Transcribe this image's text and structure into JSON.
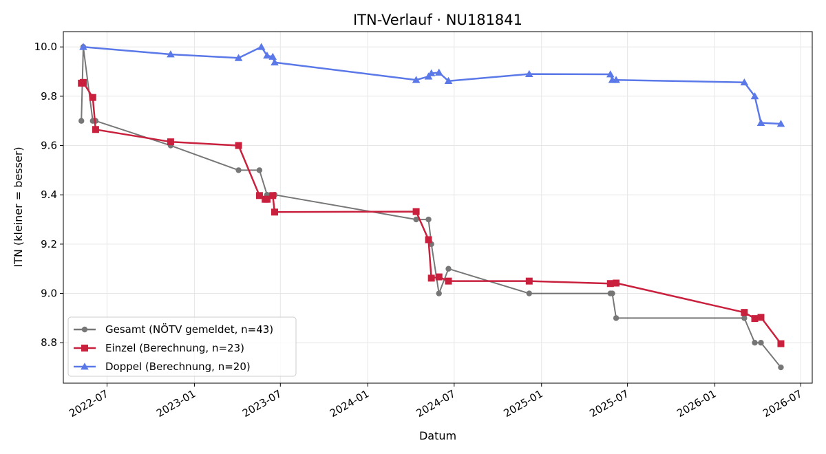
{
  "chart_data": {
    "type": "line",
    "title": "ITN-Verlauf · NU181841",
    "xlabel": "Datum",
    "ylabel": "ITN  (kleiner = besser)",
    "x_type": "date",
    "xlim": [
      "2022-03-31",
      "2026-07-25"
    ],
    "ylim": [
      8.636,
      10.062
    ],
    "x_ticks": [
      "2022-07-01",
      "2023-01-01",
      "2023-07-01",
      "2024-01-01",
      "2024-07-01",
      "2025-01-01",
      "2025-07-01",
      "2026-01-01",
      "2026-07-01"
    ],
    "x_tick_labels": [
      "2022-07",
      "2023-01",
      "2023-07",
      "2024-01",
      "2024-07",
      "2025-01",
      "2025-07",
      "2026-01",
      "2026-07"
    ],
    "y_ticks": [
      8.8,
      9.0,
      9.2,
      9.4,
      9.6,
      9.8,
      10.0
    ],
    "y_tick_labels": [
      "8.8",
      "9.0",
      "9.2",
      "9.4",
      "9.6",
      "9.8",
      "10.0"
    ],
    "grid": true,
    "legend_position": "lower-left",
    "series": [
      {
        "name": "Gesamt (NÖTV gemeldet, n=43)",
        "color": "#4a4a4a",
        "marker": "circle",
        "points": [
          [
            "2022-05-08",
            9.7
          ],
          [
            "2022-05-12",
            10.0
          ],
          [
            "2022-06-01",
            9.7
          ],
          [
            "2022-06-07",
            9.7
          ],
          [
            "2022-11-12",
            9.6
          ],
          [
            "2023-04-04",
            9.5
          ],
          [
            "2023-05-18",
            9.5
          ],
          [
            "2023-06-03",
            9.4
          ],
          [
            "2023-06-19",
            9.4
          ],
          [
            "2024-04-12",
            9.3
          ],
          [
            "2024-05-08",
            9.3
          ],
          [
            "2024-05-14",
            9.2
          ],
          [
            "2024-05-30",
            9.0
          ],
          [
            "2024-06-19",
            9.1
          ],
          [
            "2024-12-06",
            9.0
          ],
          [
            "2025-05-26",
            9.0
          ],
          [
            "2025-05-30",
            9.0
          ],
          [
            "2025-06-07",
            8.9
          ],
          [
            "2026-03-04",
            8.9
          ],
          [
            "2026-03-26",
            8.8
          ],
          [
            "2026-04-08",
            8.8
          ],
          [
            "2026-05-20",
            8.7
          ]
        ]
      },
      {
        "name": "Einzel (Berechnung, n=23)",
        "color": "#c8203d",
        "marker": "square",
        "points": [
          [
            "2022-05-08",
            9.853
          ],
          [
            "2022-05-12",
            9.856
          ],
          [
            "2022-06-01",
            9.795
          ],
          [
            "2022-06-07",
            9.665
          ],
          [
            "2022-11-12",
            9.615
          ],
          [
            "2023-04-04",
            9.6
          ],
          [
            "2023-05-18",
            9.397
          ],
          [
            "2023-05-30",
            9.382
          ],
          [
            "2023-06-03",
            9.382
          ],
          [
            "2023-06-15",
            9.397
          ],
          [
            "2023-06-19",
            9.33
          ],
          [
            "2024-04-12",
            9.332
          ],
          [
            "2024-05-08",
            9.218
          ],
          [
            "2024-05-14",
            9.062
          ],
          [
            "2024-05-30",
            9.067
          ],
          [
            "2024-06-19",
            9.05
          ],
          [
            "2024-12-06",
            9.05
          ],
          [
            "2025-05-26",
            9.04
          ],
          [
            "2025-06-07",
            9.042
          ],
          [
            "2026-03-04",
            8.923
          ],
          [
            "2026-03-26",
            8.898
          ],
          [
            "2026-04-08",
            8.903
          ],
          [
            "2026-05-20",
            8.796
          ]
        ]
      },
      {
        "name": "Doppel (Berechnung, n=20)",
        "color": "#5a78e8",
        "marker": "triangle",
        "points": [
          [
            "2022-05-12",
            10.0
          ],
          [
            "2022-11-12",
            9.97
          ],
          [
            "2023-04-04",
            9.955
          ],
          [
            "2023-05-22",
            10.0
          ],
          [
            "2023-06-03",
            9.965
          ],
          [
            "2023-06-15",
            9.96
          ],
          [
            "2023-06-19",
            9.937
          ],
          [
            "2024-04-12",
            9.866
          ],
          [
            "2024-05-08",
            9.88
          ],
          [
            "2024-05-14",
            9.893
          ],
          [
            "2024-05-30",
            9.896
          ],
          [
            "2024-06-19",
            9.862
          ],
          [
            "2024-12-06",
            9.89
          ],
          [
            "2025-05-26",
            9.889
          ],
          [
            "2025-05-30",
            9.866
          ],
          [
            "2025-06-07",
            9.866
          ],
          [
            "2026-03-04",
            9.856
          ],
          [
            "2026-03-26",
            9.8
          ],
          [
            "2026-04-08",
            9.692
          ],
          [
            "2026-05-20",
            9.688
          ]
        ]
      }
    ]
  }
}
